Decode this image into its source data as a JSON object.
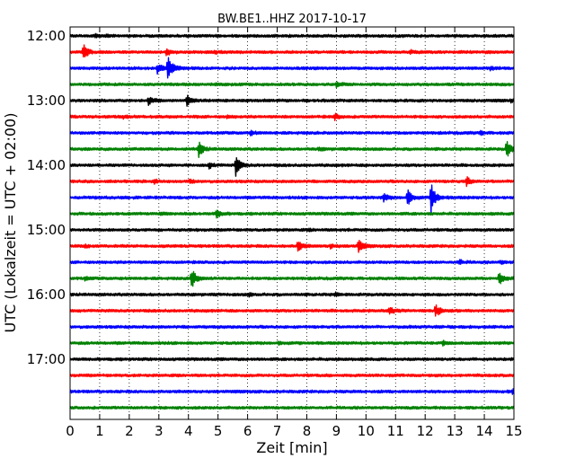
{
  "chart_data": {
    "type": "line",
    "title": "BW.BE1..HHZ 2017-10-17",
    "xlabel": "Zeit  [min]",
    "ylabel": "UTC (Lokalzeit = UTC + 02:00)",
    "xlim": [
      0,
      15
    ],
    "x_ticks": [
      "0",
      "1",
      "2",
      "3",
      "4",
      "5",
      "6",
      "7",
      "8",
      "9",
      "10",
      "11",
      "12",
      "13",
      "14",
      "15"
    ],
    "y_ticks": [
      {
        "label": "12:00",
        "trace": 0
      },
      {
        "label": "13:00",
        "trace": 4
      },
      {
        "label": "14:00",
        "trace": 8
      },
      {
        "label": "15:00",
        "trace": 12
      },
      {
        "label": "16:00",
        "trace": 16
      },
      {
        "label": "17:00",
        "trace": 20
      }
    ],
    "grid": true,
    "trace_minutes": 15,
    "trace_colors": [
      "#000000",
      "#ff0000",
      "#0000ff",
      "#008000"
    ],
    "traces": [
      {
        "start": "12:00",
        "events": [
          {
            "t": 0.85,
            "amp": 0.25
          },
          {
            "t": 1.2,
            "amp": 0.1
          }
        ]
      },
      {
        "start": "12:15",
        "events": [
          {
            "t": 0.45,
            "amp": 0.9
          },
          {
            "t": 3.25,
            "amp": 0.35
          },
          {
            "t": 4.9,
            "amp": 0.15
          },
          {
            "t": 11.5,
            "amp": 0.15
          }
        ]
      },
      {
        "start": "12:30",
        "events": [
          {
            "t": 3.3,
            "amp": 1.85
          },
          {
            "t": 2.95,
            "amp": 0.6
          },
          {
            "t": 14.2,
            "amp": 0.15
          }
        ]
      },
      {
        "start": "12:45",
        "events": [
          {
            "t": 4.95,
            "amp": 0.15
          },
          {
            "t": 9.0,
            "amp": 0.3
          }
        ]
      },
      {
        "start": "13:00",
        "events": [
          {
            "t": 2.65,
            "amp": 0.45
          },
          {
            "t": 3.95,
            "amp": 0.6
          },
          {
            "t": 14.9,
            "amp": 0.12
          }
        ]
      },
      {
        "start": "13:15",
        "events": [
          {
            "t": 1.8,
            "amp": 0.12
          },
          {
            "t": 5.3,
            "amp": 0.12
          },
          {
            "t": 8.95,
            "amp": 0.35
          }
        ]
      },
      {
        "start": "13:30",
        "events": [
          {
            "t": 6.1,
            "amp": 0.2
          },
          {
            "t": 13.85,
            "amp": 0.2
          }
        ]
      },
      {
        "start": "13:45",
        "events": [
          {
            "t": 4.35,
            "amp": 0.85
          },
          {
            "t": 8.4,
            "amp": 0.15
          },
          {
            "t": 14.75,
            "amp": 1.1
          }
        ]
      },
      {
        "start": "14:00",
        "events": [
          {
            "t": 5.6,
            "amp": 1.2
          },
          {
            "t": 4.7,
            "amp": 0.3
          }
        ]
      },
      {
        "start": "14:15",
        "events": [
          {
            "t": 2.85,
            "amp": 0.2
          },
          {
            "t": 4.05,
            "amp": 0.2
          },
          {
            "t": 13.4,
            "amp": 0.5
          }
        ]
      },
      {
        "start": "14:30",
        "events": [
          {
            "t": 12.2,
            "amp": 1.85
          },
          {
            "t": 11.4,
            "amp": 0.95
          },
          {
            "t": 10.6,
            "amp": 0.45
          }
        ]
      },
      {
        "start": "14:45",
        "events": [
          {
            "t": 4.95,
            "amp": 0.45
          },
          {
            "t": 3.05,
            "amp": 0.1
          }
        ]
      },
      {
        "start": "15:00",
        "events": [
          {
            "t": 8.1,
            "amp": 0.08
          }
        ]
      },
      {
        "start": "15:15",
        "events": [
          {
            "t": 7.7,
            "amp": 0.7
          },
          {
            "t": 9.75,
            "amp": 0.75
          },
          {
            "t": 0.5,
            "amp": 0.12
          },
          {
            "t": 8.8,
            "amp": 0.2
          }
        ]
      },
      {
        "start": "15:30",
        "events": [
          {
            "t": 13.15,
            "amp": 0.25
          },
          {
            "t": 14.55,
            "amp": 0.2
          }
        ]
      },
      {
        "start": "15:45",
        "events": [
          {
            "t": 4.1,
            "amp": 1.4
          },
          {
            "t": 14.5,
            "amp": 0.75
          },
          {
            "t": 0.5,
            "amp": 0.2
          }
        ]
      },
      {
        "start": "16:00",
        "events": [
          {
            "t": 6.05,
            "amp": 0.15
          },
          {
            "t": 8.95,
            "amp": 0.2
          }
        ]
      },
      {
        "start": "16:15",
        "events": [
          {
            "t": 10.8,
            "amp": 0.45
          },
          {
            "t": 12.35,
            "amp": 0.75
          }
        ]
      },
      {
        "start": "16:30",
        "events": []
      },
      {
        "start": "16:45",
        "events": [
          {
            "t": 12.6,
            "amp": 0.2
          },
          {
            "t": 7.05,
            "amp": 0.08
          }
        ]
      },
      {
        "start": "17:00",
        "events": []
      },
      {
        "start": "17:15",
        "events": []
      },
      {
        "start": "17:30",
        "events": [
          {
            "t": 14.95,
            "amp": 0.25
          }
        ]
      },
      {
        "start": "17:45",
        "events": []
      }
    ]
  }
}
